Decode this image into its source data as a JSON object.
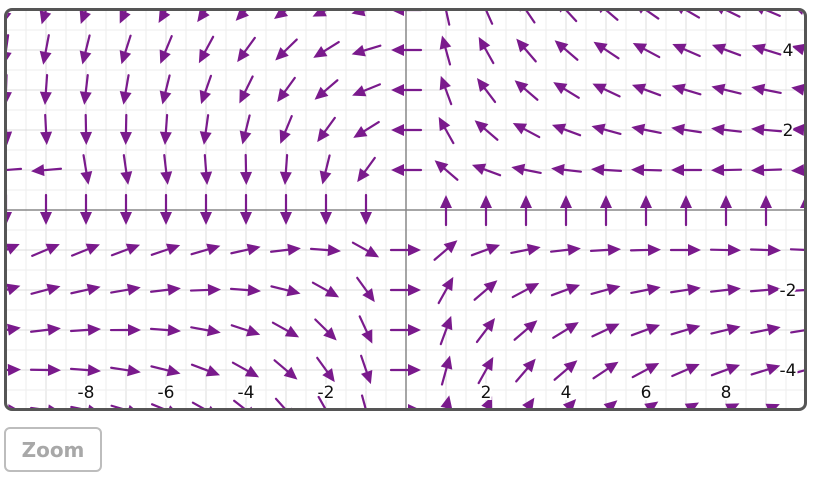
{
  "chart_data": {
    "type": "vector-field",
    "xlim": [
      -10,
      10
    ],
    "ylim": [
      -5,
      5
    ],
    "grid": true,
    "grid_step": 1,
    "arrow_color": "#7a1a8c",
    "arrow_spacing": 1,
    "x_tick_labels": [
      {
        "value": -8,
        "text": "-8"
      },
      {
        "value": -6,
        "text": "-6"
      },
      {
        "value": -4,
        "text": "-4"
      },
      {
        "value": -2,
        "text": "-2"
      },
      {
        "value": 2,
        "text": "2"
      },
      {
        "value": 4,
        "text": "4"
      },
      {
        "value": 6,
        "text": "6"
      },
      {
        "value": 8,
        "text": "8"
      }
    ],
    "y_tick_labels": [
      {
        "value": 4,
        "text": "4"
      },
      {
        "value": 2,
        "text": "2"
      },
      {
        "value": -2,
        "text": "-2"
      },
      {
        "value": -4,
        "text": "-4"
      }
    ]
  },
  "controls": {
    "zoom_label": "Zoom"
  }
}
